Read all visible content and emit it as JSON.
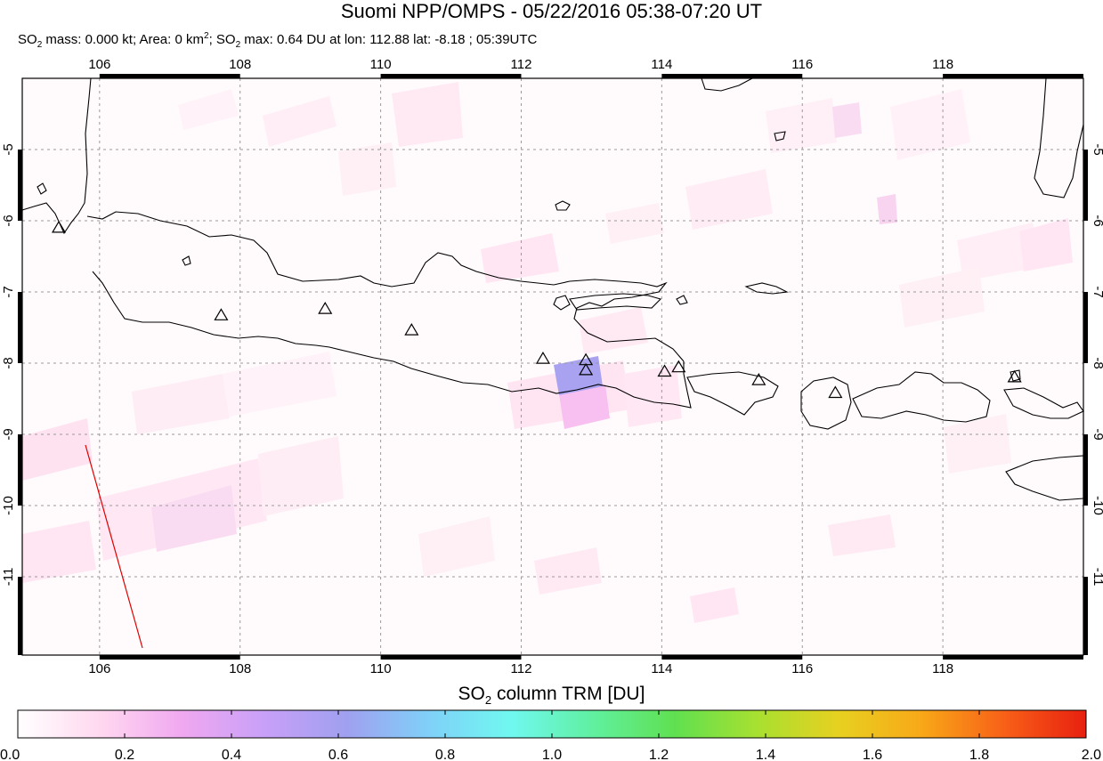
{
  "header": {
    "title": "Suomi NPP/OMPS - 05/22/2016 05:38-07:20 UT",
    "subtitle": {
      "p1": "SO",
      "p2": "2",
      "p3": " mass: 0.000 kt; Area: 0 km",
      "p4": "2",
      "p5": "; SO",
      "p6": "2",
      "p7": " max: 0.64 DU at lon: 112.88 lat: -8.18 ; 05:39UTC"
    }
  },
  "map": {
    "lon_range": [
      104.9,
      120.0
    ],
    "lat_range": [
      -12.1,
      -4.0
    ],
    "lon_ticks": [
      "106",
      "108",
      "110",
      "112",
      "114",
      "116",
      "118"
    ],
    "lat_ticks": [
      "-5",
      "-6",
      "-7",
      "-8",
      "-9",
      "-10",
      "-11"
    ],
    "grid": true,
    "max_point": {
      "lon": 112.88,
      "lat": -8.18,
      "value_du": 0.64
    },
    "volcanoes": [
      {
        "lon": 105.42,
        "lat": -6.1
      },
      {
        "lon": 107.73,
        "lat": -7.33
      },
      {
        "lon": 109.21,
        "lat": -7.24
      },
      {
        "lon": 110.44,
        "lat": -7.54
      },
      {
        "lon": 112.31,
        "lat": -7.94
      },
      {
        "lon": 112.92,
        "lat": -7.96
      },
      {
        "lon": 112.92,
        "lat": -8.1
      },
      {
        "lon": 114.04,
        "lat": -8.12
      },
      {
        "lon": 114.24,
        "lat": -8.06
      },
      {
        "lon": 115.38,
        "lat": -8.24
      },
      {
        "lon": 116.47,
        "lat": -8.42
      },
      {
        "lon": 119.02,
        "lat": -8.2
      }
    ]
  },
  "colorbar": {
    "title_main": "SO",
    "title_sub": "2",
    "title_rest": " column TRM [DU]",
    "ticks": [
      "0.0",
      "0.2",
      "0.4",
      "0.6",
      "0.8",
      "1.0",
      "1.2",
      "1.4",
      "1.6",
      "1.8",
      "2.0"
    ],
    "range": [
      0.0,
      2.0
    ],
    "colors": [
      "#ffffff",
      "#ffd8f0",
      "#f0a8f0",
      "#c8a0f8",
      "#a0a0f0",
      "#80d0f8",
      "#70f8f0",
      "#60f0a0",
      "#60e050",
      "#a8e030",
      "#e8d020",
      "#f8a818",
      "#f86018",
      "#e82010"
    ]
  }
}
